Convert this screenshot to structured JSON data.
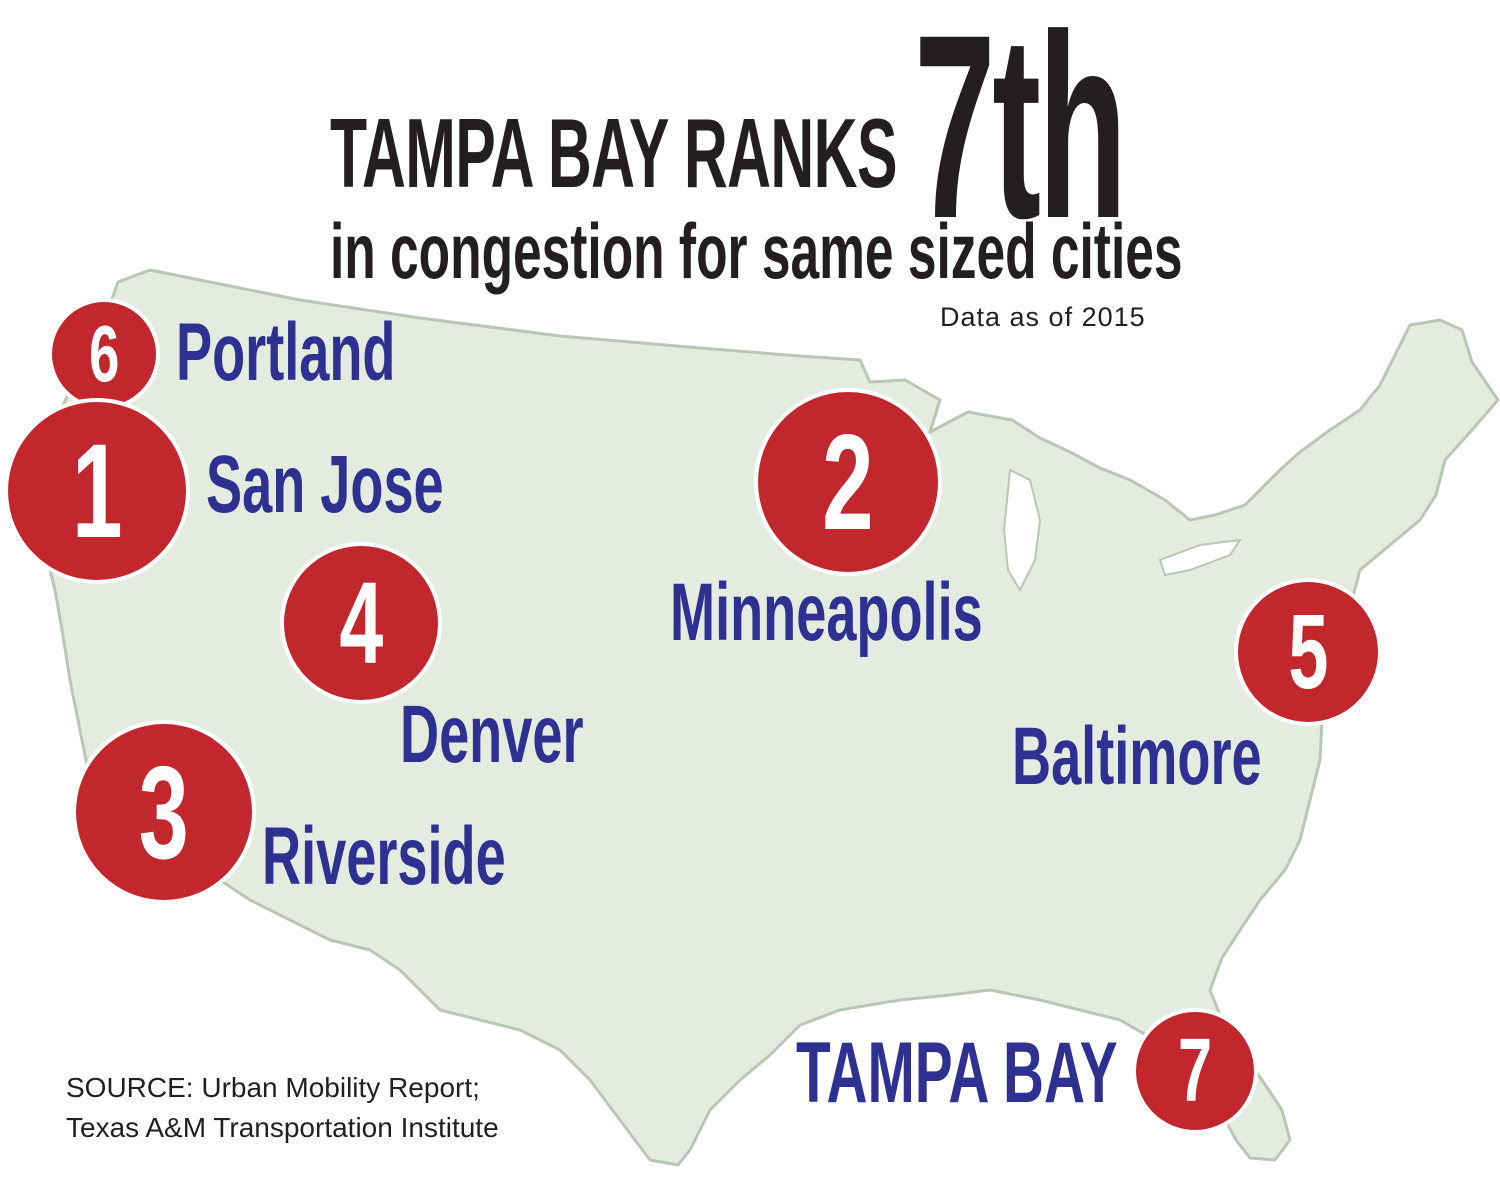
{
  "title": {
    "main": "TAMPA BAY RANKS",
    "rank": "7th",
    "sub": "in congestion for same sized cities",
    "note": "Data as of 2015"
  },
  "colors": {
    "map_fill": "#e4ecdf",
    "map_stroke": "#bcc6b6",
    "badge": "#c1272d",
    "city_text": "#2e3192",
    "headline": "#231f20"
  },
  "cities": [
    {
      "rank": "6",
      "name": "Portland"
    },
    {
      "rank": "1",
      "name": "San Jose"
    },
    {
      "rank": "2",
      "name": "Minneapolis"
    },
    {
      "rank": "4",
      "name": "Denver"
    },
    {
      "rank": "5",
      "name": "Baltimore"
    },
    {
      "rank": "3",
      "name": "Riverside"
    },
    {
      "rank": "7",
      "name": "TAMPA BAY"
    }
  ],
  "source": {
    "line1": "SOURCE:  Urban Mobility Report;",
    "line2": "Texas A&M Transportation Institute"
  }
}
